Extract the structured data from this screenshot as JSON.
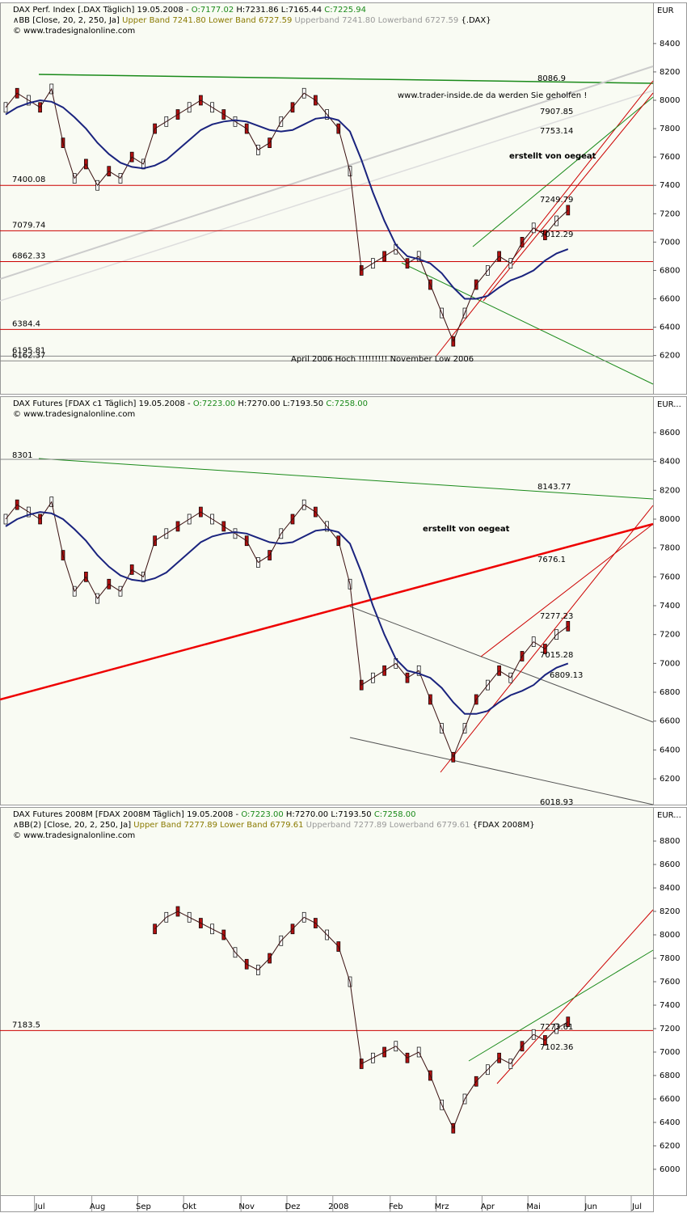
{
  "chart_data": [
    {
      "type": "line",
      "header": [
        [
          "DAX Perf. Index [.DAX  Täglich] 19.05.2008 - ",
          "O:7177.02",
          " H:7231.86 L:7165.44 ",
          "C:7225.94"
        ],
        [
          "∧BB [Close, 20, 2, 250, Ja] ",
          "Upper Band 7241.80 Lower Band 6727.59 ",
          "Upperband 7241.80 Lowerband 6727.59 ",
          "{.DAX}"
        ],
        [
          "© www.tradesignalonline.com"
        ]
      ],
      "unit": "EUR",
      "ylim": [
        5930,
        8690
      ],
      "yticks": [
        6200,
        6400,
        6600,
        6800,
        7000,
        7200,
        7400,
        7600,
        7800,
        8000,
        8200,
        8400
      ],
      "series": [
        {
          "name": "DAX",
          "color": "#3a1010",
          "values": [
            7950,
            8050,
            8000,
            7950,
            8080,
            7700,
            7450,
            7550,
            7400,
            7500,
            7450,
            7600,
            7550,
            7800,
            7850,
            7900,
            7950,
            8000,
            7950,
            7900,
            7850,
            7800,
            7650,
            7700,
            7850,
            7950,
            8050,
            8000,
            7900,
            7800,
            7500,
            6800,
            6850,
            6900,
            6950,
            6850,
            6900,
            6700,
            6500,
            6300,
            6500,
            6700,
            6800,
            6900,
            6850,
            7000,
            7100,
            7050,
            7150,
            7225,
            null,
            null,
            null,
            null,
            null,
            null,
            null
          ]
        },
        {
          "name": "MA",
          "color": "#1a237e",
          "values": [
            7900,
            7950,
            7980,
            8000,
            7990,
            7950,
            7880,
            7800,
            7700,
            7620,
            7560,
            7530,
            7520,
            7540,
            7580,
            7650,
            7720,
            7790,
            7830,
            7850,
            7860,
            7850,
            7820,
            7790,
            7780,
            7790,
            7830,
            7870,
            7880,
            7860,
            7780,
            7580,
            7350,
            7150,
            6980,
            6900,
            6880,
            6850,
            6780,
            6680,
            6600,
            6600,
            6620,
            6680,
            6730,
            6760,
            6800,
            6870,
            6920,
            6950,
            null,
            null,
            null,
            null,
            null,
            null,
            null
          ]
        }
      ],
      "levels": [
        7400.08,
        7079.74,
        6862.33,
        6384.4,
        6195.81,
        6162.37
      ],
      "annotations": [
        "8086.9",
        "www.trader-inside.de da werden Sie geholfen !",
        "7907.85",
        "7753.14",
        "erstellt von oegeat",
        "7249.79",
        "7012.29",
        "April 2006 Hoch !!!!!!!!!  November Low 2006"
      ]
    },
    {
      "type": "line",
      "header": [
        [
          "DAX Futures [FDAX c1  Täglich] 19.05.2008 - ",
          "O:7223.00",
          " H:7270.00 L:7193.50 ",
          "C:7258.00"
        ],
        [
          "© www.tradesignalonline.com"
        ]
      ],
      "unit": "EUR...",
      "ylim": [
        6021,
        8852
      ],
      "yticks": [
        6200,
        6400,
        6600,
        6800,
        7000,
        7200,
        7400,
        7600,
        7800,
        8000,
        8200,
        8400,
        8600
      ],
      "series": [
        {
          "name": "FDAX",
          "color": "#3a1010",
          "values": [
            8000,
            8100,
            8050,
            8000,
            8120,
            7750,
            7500,
            7600,
            7450,
            7550,
            7500,
            7650,
            7600,
            7850,
            7900,
            7950,
            8000,
            8050,
            8000,
            7950,
            7900,
            7850,
            7700,
            7750,
            7900,
            8000,
            8100,
            8050,
            7950,
            7850,
            7550,
            6850,
            6900,
            6950,
            7000,
            6900,
            6950,
            6750,
            6550,
            6350,
            6550,
            6750,
            6850,
            6950,
            6900,
            7050,
            7150,
            7100,
            7200,
            7258,
            null,
            null,
            null,
            null,
            null,
            null,
            null
          ]
        },
        {
          "name": "MA",
          "color": "#1a237e",
          "values": [
            7950,
            8000,
            8030,
            8050,
            8040,
            8000,
            7930,
            7850,
            7750,
            7670,
            7610,
            7580,
            7570,
            7590,
            7630,
            7700,
            7770,
            7840,
            7880,
            7900,
            7910,
            7900,
            7870,
            7840,
            7830,
            7840,
            7880,
            7920,
            7930,
            7910,
            7830,
            7630,
            7400,
            7200,
            7030,
            6950,
            6930,
            6900,
            6830,
            6730,
            6650,
            6650,
            6670,
            6730,
            6780,
            6810,
            6850,
            6920,
            6970,
            7000,
            null,
            null,
            null,
            null,
            null,
            null,
            null
          ]
        }
      ],
      "annotations": [
        "8301",
        "8143.77",
        "erstellt von oegeat",
        "7676.1",
        "7277.23",
        "7015.28",
        "6809.13",
        "6018.93"
      ]
    },
    {
      "type": "line",
      "header": [
        [
          "DAX Futures 2008M [FDAX 2008M  Täglich] 19.05.2008 - ",
          "O:7223.00",
          " H:7270.00 L:7193.50 ",
          "C:7258.00"
        ],
        [
          "∧BB(2) [Close, 20, 2, 250, Ja] ",
          "Upper Band 7277.89 Lower Band 6779.61 ",
          "Upperband 7277.89 Lowerband 6779.61 ",
          "{FDAX 2008M}"
        ],
        [
          "© www.tradesignalonline.com"
        ]
      ],
      "unit": "EUR...",
      "ylim": [
        5779,
        9090
      ],
      "yticks": [
        6000,
        6200,
        6400,
        6600,
        6800,
        7000,
        7200,
        7400,
        7600,
        7800,
        8000,
        8200,
        8400,
        8600,
        8800
      ],
      "categories": [
        null,
        null,
        null,
        "Jul",
        null,
        null,
        null,
        null,
        "Aug",
        null,
        null,
        null,
        "Sep",
        null,
        null,
        null,
        "Okt",
        null,
        null,
        null,
        null,
        "Nov",
        null,
        null,
        null,
        "Dez",
        null,
        null,
        null,
        "2008",
        null,
        null,
        null,
        null,
        "Feb",
        null,
        null,
        null,
        "Mrz",
        null,
        null,
        null,
        "Apr",
        null,
        null,
        null,
        "Mai",
        null,
        null,
        null,
        null,
        "Jun",
        null,
        null,
        null,
        "Jul",
        null
      ],
      "series": [
        {
          "name": "FDAX 2008M",
          "color": "#3a1010",
          "values": [
            null,
            null,
            null,
            null,
            null,
            null,
            null,
            null,
            null,
            null,
            null,
            null,
            null,
            8050,
            8150,
            8200,
            8150,
            8100,
            8050,
            8000,
            7850,
            7750,
            7700,
            7800,
            7950,
            8050,
            8150,
            8100,
            8000,
            7900,
            7600,
            6900,
            6950,
            7000,
            7050,
            6950,
            7000,
            6800,
            6550,
            6350,
            6600,
            6750,
            6850,
            6950,
            6900,
            7050,
            7150,
            7100,
            7200,
            7258,
            null,
            null,
            null,
            null,
            null,
            null,
            null
          ]
        }
      ],
      "levels": [
        7183.5
      ],
      "annotations": [
        "7273.61",
        "7102.36"
      ]
    }
  ]
}
